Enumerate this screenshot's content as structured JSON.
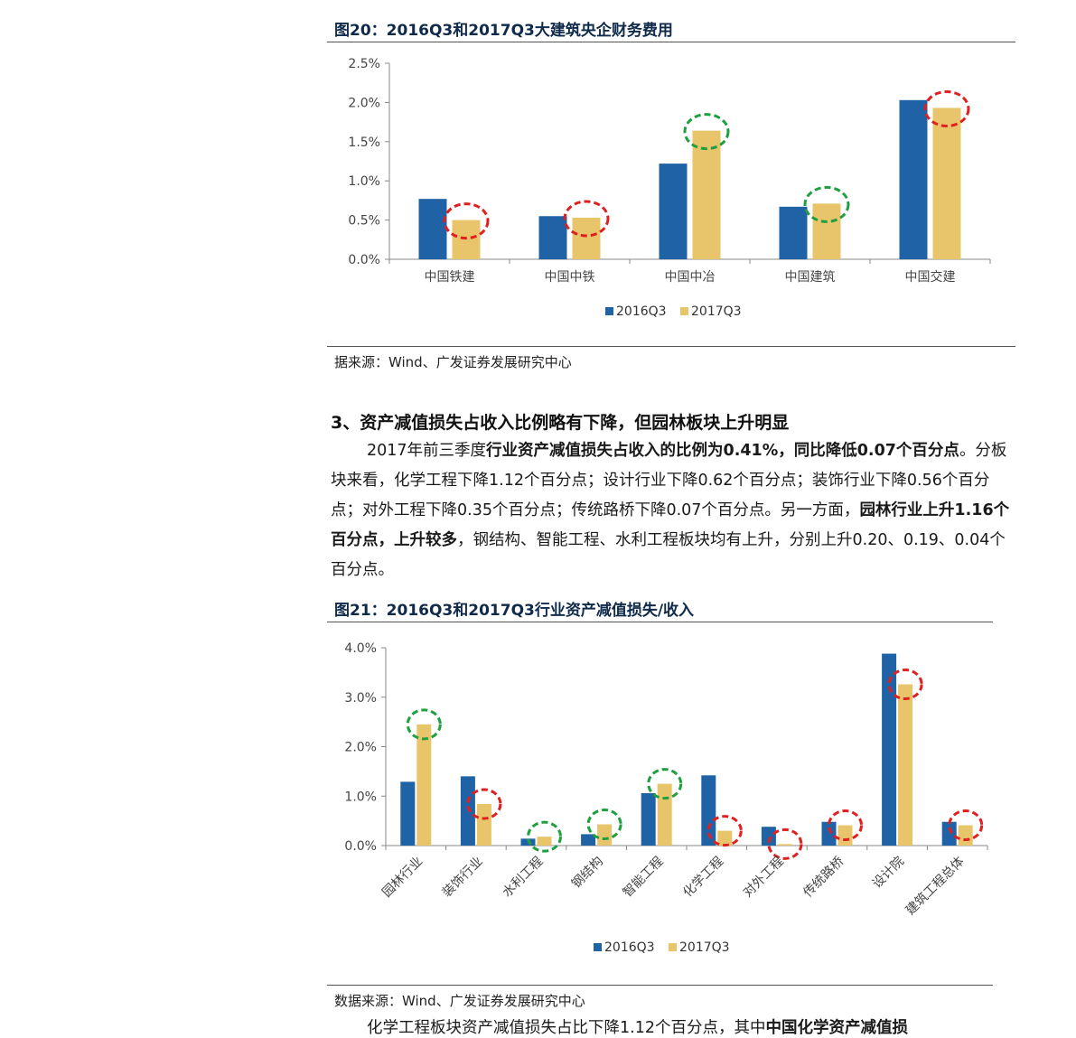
{
  "figure20": {
    "title": "图20：2016Q3和2017Q3大建筑央企财务费用",
    "source": "据来源：Wind、广发证券发展研究中心"
  },
  "section": {
    "heading": "3、资产减值损失占收入比例略有下降，但园林板块上升明显",
    "p1_a": "2017年前三季度",
    "p1_b": "行业资产减值损失占收入的比例为0.41%，同比降低0.07个百分点",
    "p1_c": "。分板块来看，化学工程下降1.12个百分点；设计行业下降0.62个百分点；装饰行业下降0.56个百分点；对外工程下降0.35个百分点；传统路桥下降0.07个百分点。另一方面，",
    "p1_d": "园林行业上升1.16个百分点，上升较多",
    "p1_e": "，钢结构、智能工程、水利工程板块均有上升，分别上升0.20、0.19、0.04个百分点。"
  },
  "figure21": {
    "title": "图21：2016Q3和2017Q3行业资产减值损失/收入",
    "source": "数据来源：Wind、广发证券发展研究中心"
  },
  "bottom_cut_text": {
    "a": "化学工程板块资产减值损失占比下降1.12个百分点，其中",
    "b": "中国化学资产减值损"
  },
  "colors": {
    "series_2016": "#1f63a6",
    "series_2017": "#e8c56a",
    "circle_red": "#e02020",
    "circle_green": "#1fa040"
  },
  "chart_data": [
    {
      "type": "bar",
      "title": "图20：2016Q3和2017Q3大建筑央企财务费用",
      "categories": [
        "中国铁建",
        "中国中铁",
        "中国中冶",
        "中国建筑",
        "中国交建"
      ],
      "series": [
        {
          "name": "2016Q3",
          "values": [
            0.77,
            0.55,
            1.22,
            0.67,
            2.03
          ]
        },
        {
          "name": "2017Q3",
          "values": [
            0.5,
            0.53,
            1.64,
            0.71,
            1.93
          ]
        }
      ],
      "highlight_circles": [
        "red",
        "red",
        "green",
        "green",
        "red"
      ],
      "ylim": [
        0,
        2.5
      ],
      "yticks": [
        "0.0%",
        "0.5%",
        "1.0%",
        "1.5%",
        "2.0%",
        "2.5%"
      ],
      "xlabel": "",
      "ylabel": "",
      "legend": "bottom-center",
      "grid": false
    },
    {
      "type": "bar",
      "title": "图21：2016Q3和2017Q3行业资产减值损失/收入",
      "categories": [
        "园林行业",
        "装饰行业",
        "水利工程",
        "钢结构",
        "智能工程",
        "化学工程",
        "对外工程",
        "传统路桥",
        "设计院",
        "建筑工程总体"
      ],
      "series": [
        {
          "name": "2016Q3",
          "values": [
            1.29,
            1.4,
            0.14,
            0.23,
            1.06,
            1.42,
            0.38,
            0.48,
            3.88,
            0.48
          ]
        },
        {
          "name": "2017Q3",
          "values": [
            2.45,
            0.84,
            0.18,
            0.43,
            1.25,
            0.3,
            0.03,
            0.41,
            3.26,
            0.41
          ]
        }
      ],
      "highlight_circles": [
        "green",
        "red",
        "green",
        "green",
        "green",
        "red",
        "red",
        "red",
        "red",
        "red"
      ],
      "ylim": [
        0,
        4.0
      ],
      "yticks": [
        "0.0%",
        "1.0%",
        "2.0%",
        "3.0%",
        "4.0%"
      ],
      "xlabel": "",
      "ylabel": "",
      "legend": "bottom-center",
      "grid": false
    }
  ]
}
